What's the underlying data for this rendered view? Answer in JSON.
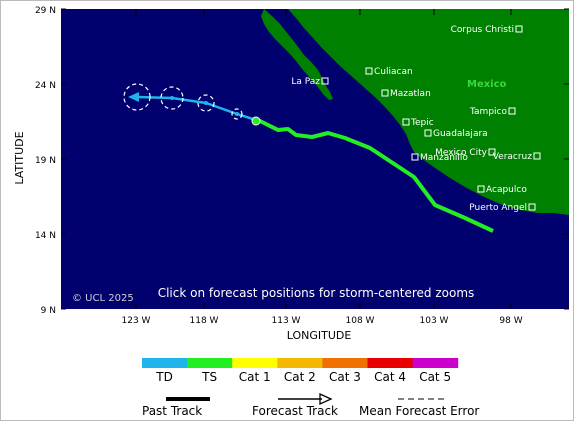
{
  "axes": {
    "xlabel": "LONGITUDE",
    "ylabel": "LATITUDE",
    "lat_ticks": [
      "29 N",
      "24 N",
      "19 N",
      "14 N",
      "9 N"
    ],
    "lon_ticks": [
      "123 W",
      "118 W",
      "113 W",
      "108 W",
      "103 W",
      "98 W"
    ]
  },
  "map": {
    "country_label": "Mexico",
    "copyright": "© UCL 2025",
    "instruction": "Click on forecast positions for storm-centered zooms",
    "cities": [
      "Corpus Christi",
      "Culiacan",
      "La Paz",
      "Mazatlan",
      "Tampico",
      "Tepic",
      "Guadalajara",
      "Mexico City",
      "Veracruz",
      "Manzanillo",
      "Acapulco",
      "Puerto Angel"
    ]
  },
  "intensity_scale": [
    {
      "label": "TD",
      "color": "#1fb5ea"
    },
    {
      "label": "TS",
      "color": "#22ee22"
    },
    {
      "label": "Cat 1",
      "color": "#ffff00"
    },
    {
      "label": "Cat 2",
      "color": "#f5b800"
    },
    {
      "label": "Cat 3",
      "color": "#f07000"
    },
    {
      "label": "Cat 4",
      "color": "#e80000"
    },
    {
      "label": "Cat 5",
      "color": "#cc00cc"
    }
  ],
  "legend": {
    "past_track": "Past Track",
    "forecast_track": "Forecast Track",
    "mean_error": "Mean Forecast Error"
  }
}
